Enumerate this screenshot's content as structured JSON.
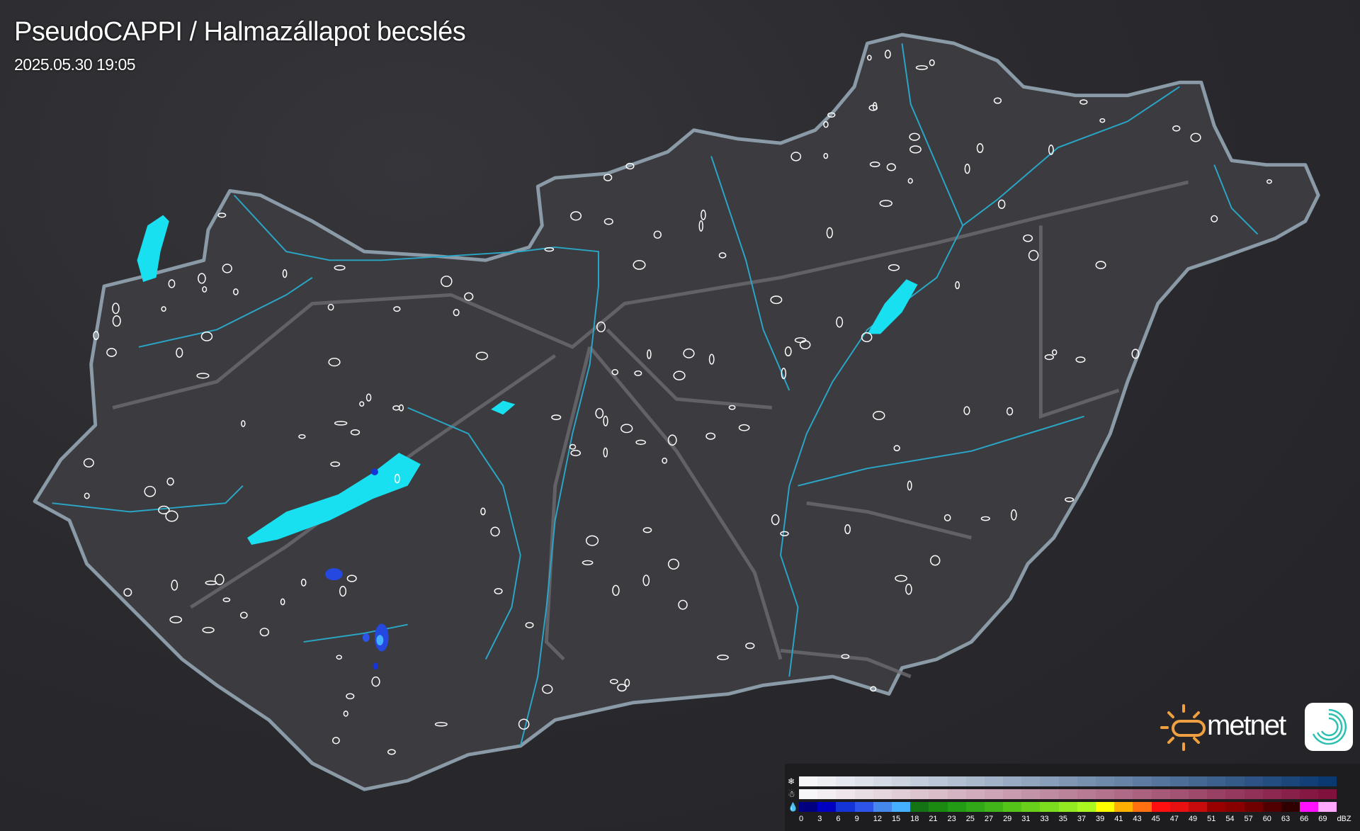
{
  "header": {
    "title": "PseudoCAPPI  / Halmazállapot becslés",
    "timestamp": "2025.05.30 19:05"
  },
  "logo": {
    "text": "metnet",
    "sun_color": "#f0a040",
    "icon_color": "#2cc0b0"
  },
  "map": {
    "country": "Hungary",
    "river_color": "#2aa6c6",
    "lake_color": "#18e0f0",
    "road_color": "#707074",
    "border_color": "#8a9aa6"
  },
  "legend": {
    "unit": "dBZ",
    "rows": [
      {
        "name": "snow",
        "icon": "snowflake-icon",
        "start": "#f6f6f8",
        "end": "#0a3870"
      },
      {
        "name": "wet-snow",
        "icon": "sleet-icon",
        "start": "#f6f6f8",
        "end": "#80103c"
      },
      {
        "name": "rain",
        "icon": "raindrop-icon",
        "colors": [
          "#000080",
          "#0000c0",
          "#1434d8",
          "#2c54e8",
          "#4488ee",
          "#44b0ff",
          "#147414",
          "#1a8a10",
          "#229c14",
          "#30a818",
          "#40b418",
          "#54c418",
          "#68d01a",
          "#7cdc1e",
          "#94ea20",
          "#aaf820",
          "#ffff00",
          "#ffb000",
          "#ff7010",
          "#ff1010",
          "#e81010",
          "#c80c0c",
          "#980000",
          "#880000",
          "#700000",
          "#500000",
          "#300000",
          "#ff10ff",
          "#ffa8ff",
          "#90f0ff"
        ]
      }
    ],
    "ticks": [
      "0",
      "3",
      "6",
      "9",
      "12",
      "15",
      "18",
      "21",
      "23",
      "25",
      "27",
      "29",
      "31",
      "33",
      "35",
      "37",
      "39",
      "41",
      "43",
      "45",
      "47",
      "49",
      "51",
      "54",
      "57",
      "60",
      "63",
      "66",
      "69",
      "dBZ"
    ]
  }
}
